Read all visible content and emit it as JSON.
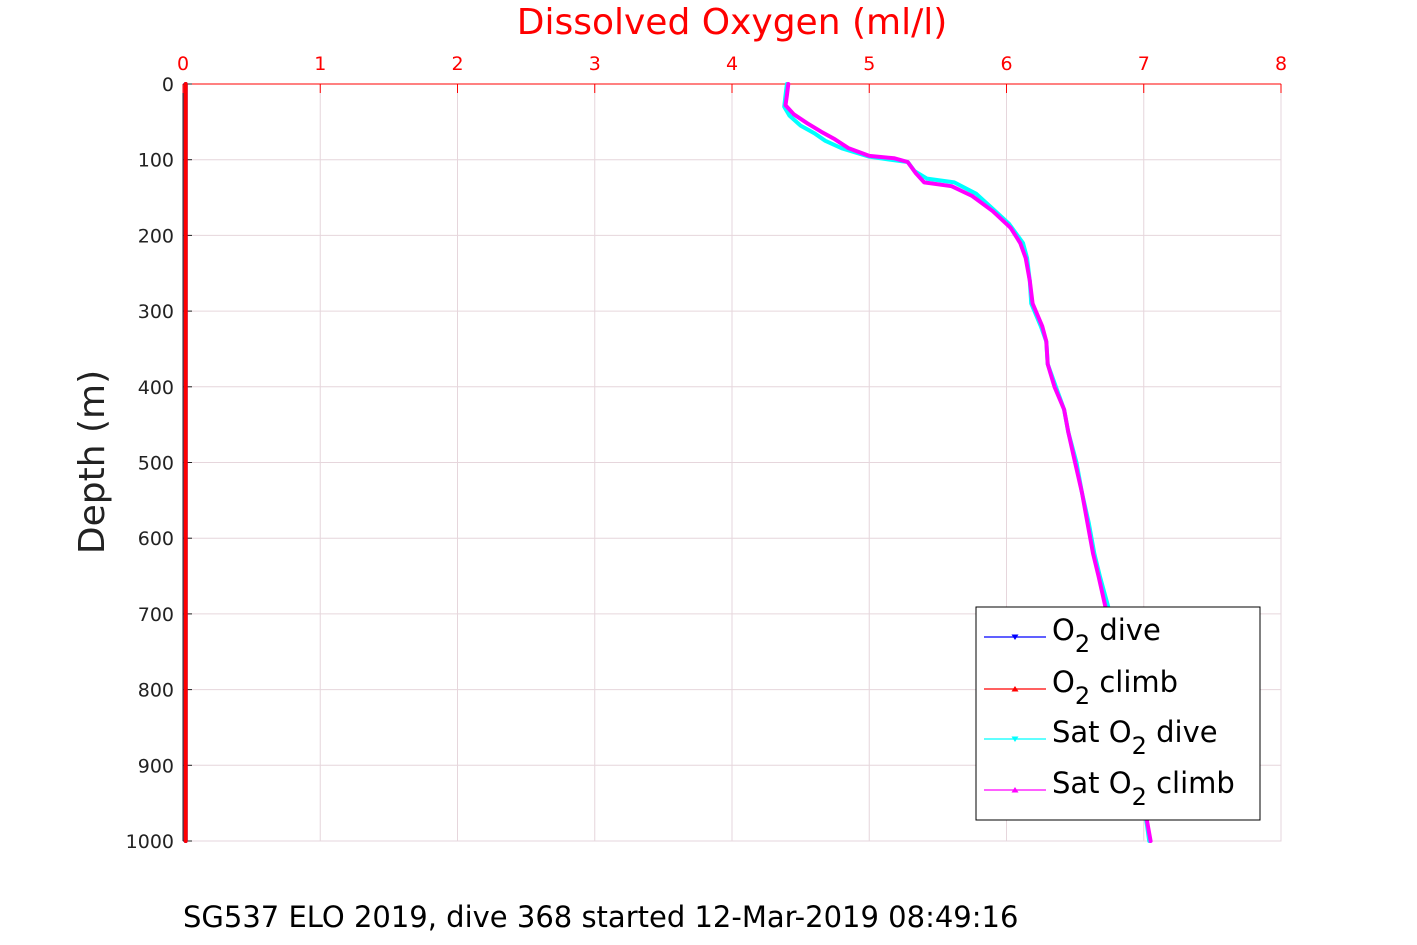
{
  "chart_data": {
    "type": "line",
    "title": "Dissolved Oxygen (ml/l)",
    "ylabel": "Depth (m)",
    "xlabel": "",
    "xlim": [
      0,
      8
    ],
    "ylim": [
      0,
      1000
    ],
    "y_reversed": true,
    "x_axis_position": "top",
    "x_ticks": [
      0,
      1,
      2,
      3,
      4,
      5,
      6,
      7,
      8
    ],
    "y_ticks": [
      0,
      100,
      200,
      300,
      400,
      500,
      600,
      700,
      800,
      900,
      1000
    ],
    "grid": true,
    "legend_position": "bottom-right",
    "caption": "SG537 ELO 2019, dive 368 started 12-Mar-2019 08:49:16",
    "colors": {
      "o2_dive": "#0000ff",
      "o2_climb": "#ff0000",
      "sat_dive": "#00ffff",
      "sat_climb": "#ff00ff",
      "title": "#ff0000",
      "grid": "#e6d6dc"
    },
    "series": [
      {
        "key": "o2_dive",
        "legend": {
          "pre": "O",
          "sub": "2",
          "post": " dive"
        },
        "points": [
          [
            0.02,
            0
          ],
          [
            0.02,
            1000
          ]
        ]
      },
      {
        "key": "o2_climb",
        "legend": {
          "pre": "O",
          "sub": "2",
          "post": " climb"
        },
        "points": [
          [
            0.02,
            0
          ],
          [
            0.02,
            1000
          ]
        ]
      },
      {
        "key": "sat_dive",
        "legend": {
          "pre": "Sat O",
          "sub": "2",
          "post": " dive"
        },
        "points": [
          [
            4.4,
            0
          ],
          [
            4.39,
            15
          ],
          [
            4.38,
            30
          ],
          [
            4.42,
            42
          ],
          [
            4.5,
            55
          ],
          [
            4.6,
            65
          ],
          [
            4.68,
            75
          ],
          [
            4.8,
            85
          ],
          [
            5.0,
            96
          ],
          [
            5.15,
            100
          ],
          [
            5.28,
            103
          ],
          [
            5.33,
            115
          ],
          [
            5.42,
            125
          ],
          [
            5.62,
            130
          ],
          [
            5.78,
            145
          ],
          [
            5.9,
            165
          ],
          [
            6.02,
            185
          ],
          [
            6.12,
            210
          ],
          [
            6.15,
            230
          ],
          [
            6.17,
            260
          ],
          [
            6.18,
            290
          ],
          [
            6.25,
            320
          ],
          [
            6.29,
            340
          ],
          [
            6.3,
            370
          ],
          [
            6.36,
            400
          ],
          [
            6.42,
            430
          ],
          [
            6.45,
            460
          ],
          [
            6.51,
            500
          ],
          [
            6.55,
            540
          ],
          [
            6.6,
            580
          ],
          [
            6.64,
            620
          ],
          [
            6.68,
            650
          ],
          [
            6.74,
            690
          ],
          [
            6.8,
            750
          ],
          [
            6.85,
            800
          ],
          [
            6.9,
            850
          ],
          [
            6.95,
            900
          ],
          [
            7.0,
            950
          ],
          [
            7.04,
            1000
          ]
        ]
      },
      {
        "key": "sat_climb",
        "legend": {
          "pre": "Sat O",
          "sub": "2",
          "post": " climb"
        },
        "points": [
          [
            4.41,
            0
          ],
          [
            4.4,
            15
          ],
          [
            4.39,
            28
          ],
          [
            4.45,
            40
          ],
          [
            4.55,
            52
          ],
          [
            4.65,
            63
          ],
          [
            4.75,
            73
          ],
          [
            4.85,
            85
          ],
          [
            5.0,
            95
          ],
          [
            5.18,
            98
          ],
          [
            5.28,
            103
          ],
          [
            5.34,
            118
          ],
          [
            5.4,
            130
          ],
          [
            5.6,
            135
          ],
          [
            5.75,
            148
          ],
          [
            5.9,
            168
          ],
          [
            6.03,
            190
          ],
          [
            6.1,
            210
          ],
          [
            6.14,
            230
          ],
          [
            6.17,
            260
          ],
          [
            6.19,
            290
          ],
          [
            6.26,
            320
          ],
          [
            6.29,
            340
          ],
          [
            6.3,
            370
          ],
          [
            6.35,
            400
          ],
          [
            6.42,
            430
          ],
          [
            6.45,
            460
          ],
          [
            6.5,
            500
          ],
          [
            6.55,
            540
          ],
          [
            6.59,
            580
          ],
          [
            6.63,
            620
          ],
          [
            6.67,
            650
          ],
          [
            6.72,
            690
          ],
          [
            6.8,
            750
          ],
          [
            6.86,
            800
          ],
          [
            6.91,
            850
          ],
          [
            6.96,
            900
          ],
          [
            7.0,
            950
          ],
          [
            7.05,
            1000
          ]
        ]
      }
    ]
  }
}
